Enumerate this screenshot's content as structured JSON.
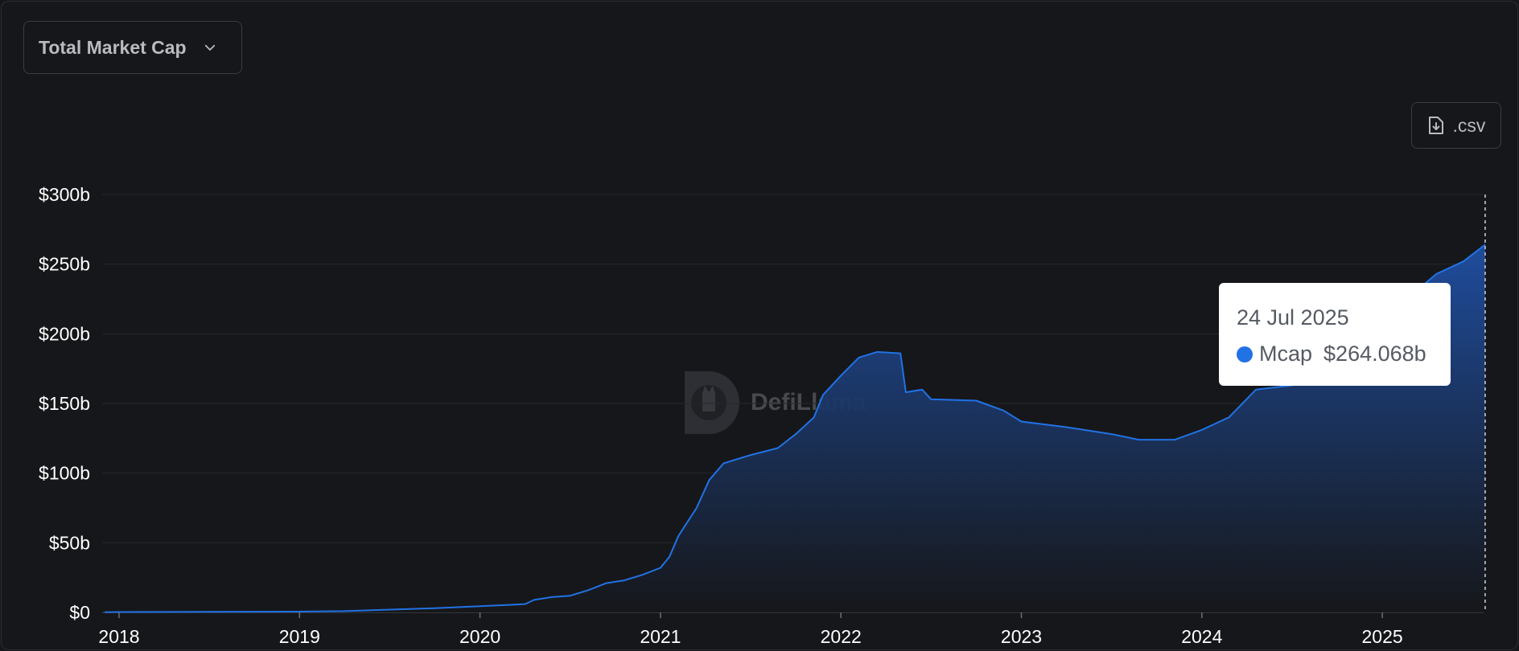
{
  "controls": {
    "metric_label": "Total Market Cap",
    "csv_label": ".csv"
  },
  "watermark": "DefiLlama",
  "tooltip": {
    "date": "24 Jul 2025",
    "series_name": "Mcap",
    "value": "$264.068b"
  },
  "colors": {
    "background": "#16171a",
    "line": "#2172e5",
    "area_top": "#1f4fa3",
    "area_bottom": "#16171a",
    "grid": "#25272b"
  },
  "chart_data": {
    "type": "area",
    "title": "",
    "xlabel": "",
    "ylabel": "",
    "x_range": [
      2017.92,
      2025.57
    ],
    "ylim": [
      0,
      300
    ],
    "y_unit": "billion USD",
    "y_ticks": [
      "$0",
      "$50b",
      "$100b",
      "$150b",
      "$200b",
      "$250b",
      "$300b"
    ],
    "x_ticks": [
      "2018",
      "2019",
      "2020",
      "2021",
      "2022",
      "2023",
      "2024",
      "2025"
    ],
    "grid": true,
    "legend": "none",
    "series": [
      {
        "name": "Mcap",
        "points": [
          [
            2017.92,
            0.2
          ],
          [
            2018.0,
            0.3
          ],
          [
            2018.5,
            0.4
          ],
          [
            2019.0,
            0.6
          ],
          [
            2019.25,
            0.9
          ],
          [
            2019.5,
            2.0
          ],
          [
            2019.75,
            3.0
          ],
          [
            2020.0,
            4.5
          ],
          [
            2020.1,
            5.0
          ],
          [
            2020.25,
            6.0
          ],
          [
            2020.3,
            9.0
          ],
          [
            2020.4,
            11.0
          ],
          [
            2020.5,
            12.0
          ],
          [
            2020.6,
            16.0
          ],
          [
            2020.7,
            21.0
          ],
          [
            2020.8,
            23.0
          ],
          [
            2020.9,
            27.0
          ],
          [
            2021.0,
            32.0
          ],
          [
            2021.05,
            40.0
          ],
          [
            2021.1,
            55.0
          ],
          [
            2021.2,
            75.0
          ],
          [
            2021.27,
            95.0
          ],
          [
            2021.35,
            107.0
          ],
          [
            2021.5,
            113.0
          ],
          [
            2021.65,
            118.0
          ],
          [
            2021.75,
            128.0
          ],
          [
            2021.85,
            140.0
          ],
          [
            2021.9,
            156.0
          ],
          [
            2022.0,
            170.0
          ],
          [
            2022.1,
            183.0
          ],
          [
            2022.2,
            187.0
          ],
          [
            2022.33,
            186.0
          ],
          [
            2022.36,
            158.0
          ],
          [
            2022.45,
            160.0
          ],
          [
            2022.5,
            153.0
          ],
          [
            2022.75,
            152.0
          ],
          [
            2022.9,
            145.0
          ],
          [
            2023.0,
            137.0
          ],
          [
            2023.25,
            133.0
          ],
          [
            2023.5,
            128.0
          ],
          [
            2023.65,
            124.0
          ],
          [
            2023.85,
            124.0
          ],
          [
            2024.0,
            131.0
          ],
          [
            2024.15,
            140.0
          ],
          [
            2024.3,
            160.0
          ],
          [
            2024.5,
            163.0
          ],
          [
            2024.75,
            180.0
          ],
          [
            2025.0,
            210.0
          ],
          [
            2025.3,
            243.0
          ],
          [
            2025.45,
            252.0
          ],
          [
            2025.57,
            264.068
          ]
        ]
      }
    ],
    "hover": {
      "x": 2025.57,
      "label": "24 Jul 2025",
      "value": 264.068
    }
  }
}
